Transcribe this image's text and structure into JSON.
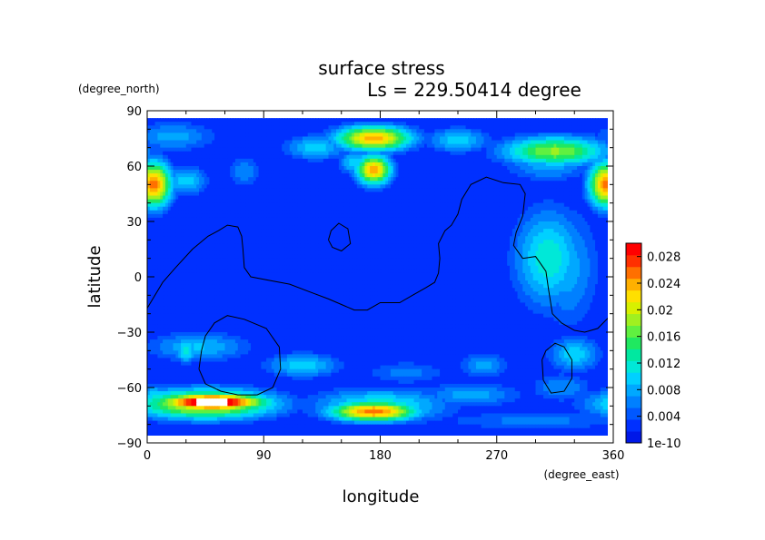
{
  "chart_data": {
    "type": "heatmap",
    "title": "surface stress",
    "subtitle": "Ls = 229.50414 degree",
    "xlabel": "longitude",
    "ylabel": "latitude",
    "x_units": "(degree_east)",
    "y_units": "(degree_north)",
    "xlim": [
      0,
      360
    ],
    "ylim": [
      -90,
      90
    ],
    "x_ticks": [
      "0",
      "90",
      "180",
      "270",
      "360"
    ],
    "y_ticks": [
      "90",
      "60",
      "30",
      "0",
      "−30",
      "−60",
      "−90"
    ],
    "x_tick_values": [
      0,
      90,
      180,
      270,
      360
    ],
    "y_tick_values": [
      90,
      60,
      30,
      0,
      -30,
      -60,
      -90
    ],
    "colorbar": {
      "labels": [
        "0.028",
        "0.024",
        "0.02",
        "0.016",
        "0.012",
        "0.008",
        "0.004",
        "1e-10"
      ],
      "label_values": [
        0.028,
        0.024,
        0.02,
        0.016,
        0.012,
        0.008,
        0.004,
        0.0
      ],
      "min": 0.0,
      "max": 0.03,
      "colors": [
        "#0018e8",
        "#0030ff",
        "#0058ff",
        "#0080ff",
        "#00a8ff",
        "#00d0ff",
        "#00e8d8",
        "#00e8a0",
        "#20e860",
        "#60f040",
        "#a0f020",
        "#d8f000",
        "#ffe000",
        "#ffb000",
        "#ff7000",
        "#ff3000",
        "#ff0000"
      ],
      "over_color": "#ffffff"
    },
    "grid": false,
    "features": [
      {
        "lon": 175,
        "lat": 75,
        "value": 0.024,
        "slon": 22,
        "slat": 5
      },
      {
        "lon": 240,
        "lat": 74,
        "value": 0.01,
        "slon": 18,
        "slat": 5
      },
      {
        "lon": 130,
        "lat": 70,
        "value": 0.01,
        "slon": 18,
        "slat": 5
      },
      {
        "lon": 20,
        "lat": 76,
        "value": 0.008,
        "slon": 25,
        "slat": 6
      },
      {
        "lon": 315,
        "lat": 68,
        "value": 0.018,
        "slon": 30,
        "slat": 6
      },
      {
        "lon": 175,
        "lat": 58,
        "value": 0.024,
        "slon": 10,
        "slat": 6
      },
      {
        "lon": 160,
        "lat": 62,
        "value": 0.01,
        "slon": 9,
        "slat": 5
      },
      {
        "lon": 5,
        "lat": 50,
        "value": 0.026,
        "slon": 10,
        "slat": 9
      },
      {
        "lon": 355,
        "lat": 50,
        "value": 0.026,
        "slon": 10,
        "slat": 9
      },
      {
        "lon": 30,
        "lat": 52,
        "value": 0.01,
        "slon": 12,
        "slat": 6
      },
      {
        "lon": 75,
        "lat": 57,
        "value": 0.007,
        "slon": 10,
        "slat": 6
      },
      {
        "lon": 310,
        "lat": 60,
        "value": 0.008,
        "slon": 25,
        "slat": 6
      },
      {
        "lon": 310,
        "lat": 10,
        "value": 0.012,
        "slon": 20,
        "slat": 20
      },
      {
        "lon": 325,
        "lat": 5,
        "value": 0.008,
        "slon": 18,
        "slat": 25
      },
      {
        "lon": 40,
        "lat": -38,
        "value": 0.009,
        "slon": 30,
        "slat": 6
      },
      {
        "lon": 30,
        "lat": -40,
        "value": 0.012,
        "slon": 6,
        "slat": 5
      },
      {
        "lon": 120,
        "lat": -48,
        "value": 0.01,
        "slon": 22,
        "slat": 5
      },
      {
        "lon": 260,
        "lat": -48,
        "value": 0.008,
        "slon": 14,
        "slat": 5
      },
      {
        "lon": 200,
        "lat": -52,
        "value": 0.006,
        "slon": 25,
        "slat": 5
      },
      {
        "lon": 330,
        "lat": -42,
        "value": 0.01,
        "slon": 15,
        "slat": 7
      },
      {
        "lon": 320,
        "lat": -60,
        "value": 0.007,
        "slon": 18,
        "slat": 6
      },
      {
        "lon": 50,
        "lat": -68,
        "value": 0.034,
        "slon": 30,
        "slat": 3.5
      },
      {
        "lon": 45,
        "lat": -69,
        "value": 0.022,
        "slon": 40,
        "slat": 6
      },
      {
        "lon": 175,
        "lat": -73,
        "value": 0.026,
        "slon": 25,
        "slat": 4
      },
      {
        "lon": 180,
        "lat": -70,
        "value": 0.012,
        "slon": 40,
        "slat": 7
      },
      {
        "lon": 5,
        "lat": -64,
        "value": 0.01,
        "slon": 8,
        "slat": 4
      },
      {
        "lon": 250,
        "lat": -64,
        "value": 0.008,
        "slon": 30,
        "slat": 5
      },
      {
        "lon": 300,
        "lat": -78,
        "value": 0.006,
        "slon": 60,
        "slat": 4
      }
    ],
    "coastlines": [
      [
        [
          0,
          -17
        ],
        [
          12,
          -3
        ],
        [
          22,
          5
        ],
        [
          35,
          15
        ],
        [
          47,
          22
        ],
        [
          55,
          25
        ],
        [
          62,
          28
        ],
        [
          70,
          27
        ],
        [
          73,
          22
        ],
        [
          74,
          15
        ],
        [
          75,
          5
        ],
        [
          80,
          0
        ],
        [
          95,
          -2
        ],
        [
          110,
          -4
        ],
        [
          125,
          -8
        ],
        [
          140,
          -12
        ],
        [
          150,
          -15
        ],
        [
          160,
          -18
        ],
        [
          170,
          -18
        ],
        [
          180,
          -14
        ],
        [
          195,
          -14
        ],
        [
          205,
          -10
        ],
        [
          215,
          -6
        ],
        [
          222,
          -3
        ],
        [
          225,
          2
        ],
        [
          226,
          10
        ],
        [
          225,
          18
        ],
        [
          230,
          25
        ],
        [
          235,
          28
        ],
        [
          240,
          34
        ],
        [
          243,
          42
        ],
        [
          250,
          50
        ],
        [
          262,
          54
        ],
        [
          275,
          51
        ],
        [
          288,
          50
        ],
        [
          292,
          45
        ],
        [
          290,
          33
        ],
        [
          285,
          24
        ],
        [
          283,
          17
        ],
        [
          290,
          10
        ],
        [
          300,
          11
        ],
        [
          305,
          6
        ],
        [
          308,
          3
        ],
        [
          310,
          -7
        ],
        [
          313,
          -20
        ],
        [
          320,
          -25
        ],
        [
          330,
          -29
        ],
        [
          338,
          -30
        ],
        [
          348,
          -28
        ],
        [
          355,
          -23
        ],
        [
          360,
          -20
        ]
      ],
      [
        [
          140,
          20
        ],
        [
          142,
          25
        ],
        [
          148,
          29
        ],
        [
          155,
          26
        ],
        [
          157,
          18
        ],
        [
          150,
          14
        ],
        [
          143,
          16
        ],
        [
          140,
          20
        ]
      ],
      [
        [
          40,
          -50
        ],
        [
          42,
          -40
        ],
        [
          45,
          -32
        ],
        [
          52,
          -25
        ],
        [
          62,
          -21
        ],
        [
          75,
          -23
        ],
        [
          92,
          -28
        ],
        [
          102,
          -38
        ],
        [
          103,
          -50
        ],
        [
          97,
          -60
        ],
        [
          85,
          -64
        ],
        [
          70,
          -64
        ],
        [
          57,
          -62
        ],
        [
          45,
          -58
        ],
        [
          40,
          -50
        ]
      ],
      [
        [
          305,
          -45
        ],
        [
          308,
          -40
        ],
        [
          315,
          -36
        ],
        [
          322,
          -38
        ],
        [
          328,
          -45
        ],
        [
          328,
          -55
        ],
        [
          322,
          -62
        ],
        [
          312,
          -63
        ],
        [
          306,
          -56
        ],
        [
          305,
          -45
        ]
      ]
    ]
  }
}
